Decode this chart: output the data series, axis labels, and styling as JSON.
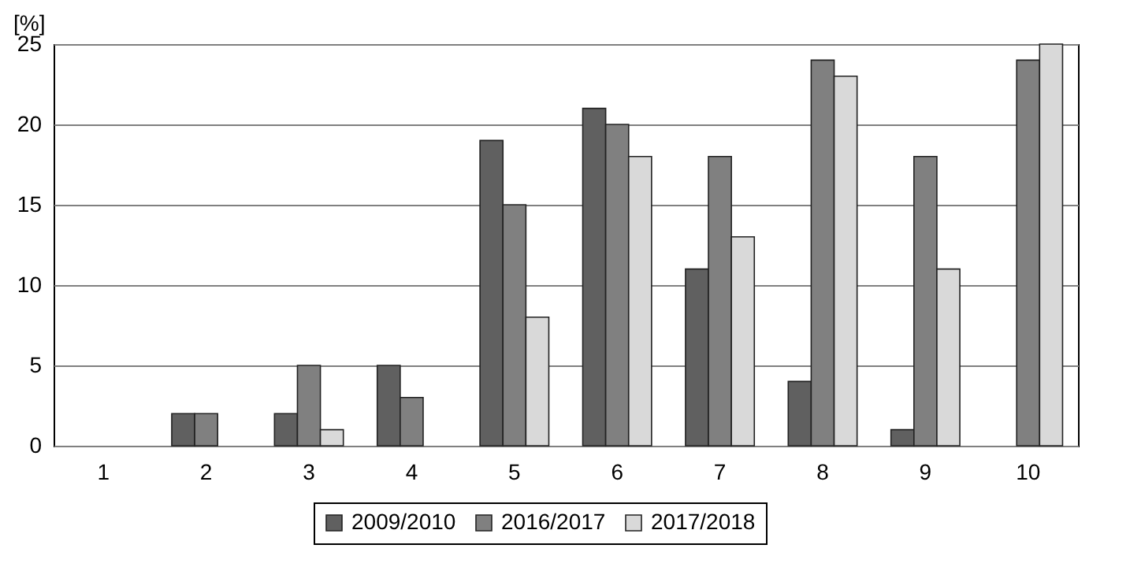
{
  "chart_data": {
    "type": "bar",
    "ylabel": "[%]",
    "categories": [
      "1",
      "2",
      "3",
      "4",
      "5",
      "6",
      "7",
      "8",
      "9",
      "10"
    ],
    "series": [
      {
        "name": "2009/2010",
        "color": "#606060",
        "values": [
          0,
          2,
          2,
          5,
          19,
          21,
          11,
          4,
          1,
          0
        ]
      },
      {
        "name": "2016/2017",
        "color": "#808080",
        "values": [
          0,
          2,
          5,
          3,
          15,
          20,
          18,
          24,
          18,
          24
        ]
      },
      {
        "name": "2017/2018",
        "color": "#d9d9d9",
        "values": [
          0,
          0,
          1,
          0,
          8,
          18,
          13,
          23,
          11,
          25
        ]
      }
    ],
    "ylim": [
      0,
      25
    ],
    "yticks": [
      0,
      5,
      10,
      15,
      20,
      25
    ],
    "grid": "y",
    "legend": "bottom"
  }
}
